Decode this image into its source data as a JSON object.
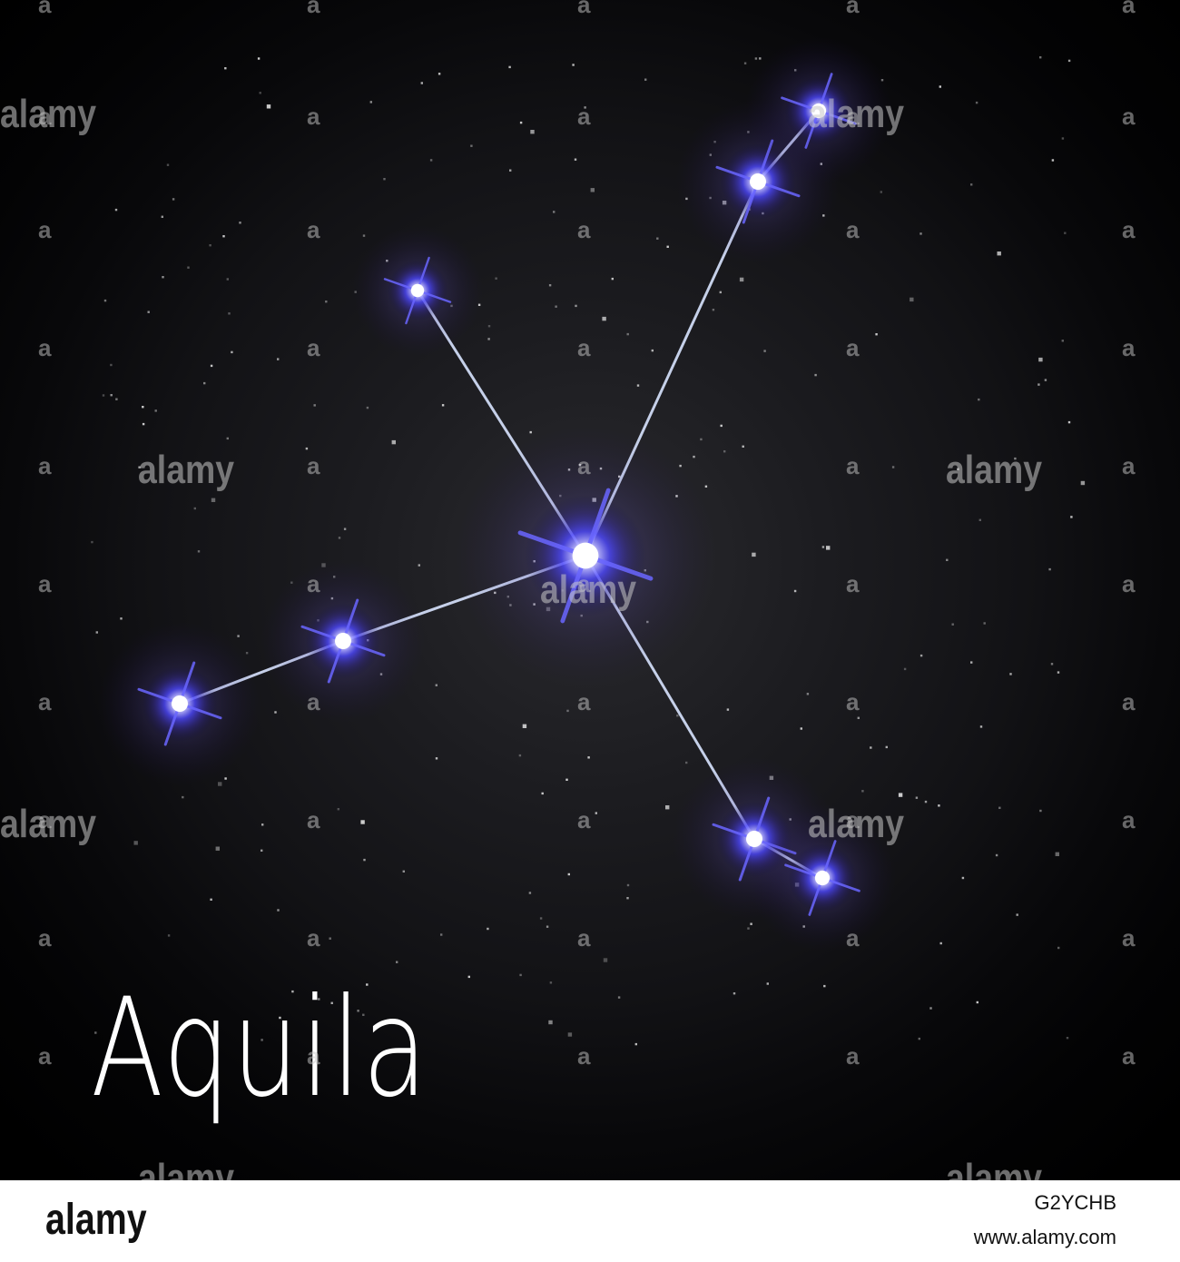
{
  "constellation": {
    "name": "Aquila"
  },
  "watermark": {
    "text": "alamy",
    "small_mark": "a"
  },
  "footer": {
    "logo": "alamy",
    "image_id": "G2YCHB",
    "url": "www.alamy.com"
  },
  "colors": {
    "sky": "#000000",
    "star_glow": "#3f3cff",
    "star_core": "#ffffff",
    "line": "#d8e4ff",
    "footer_bg": "#ffffff"
  }
}
